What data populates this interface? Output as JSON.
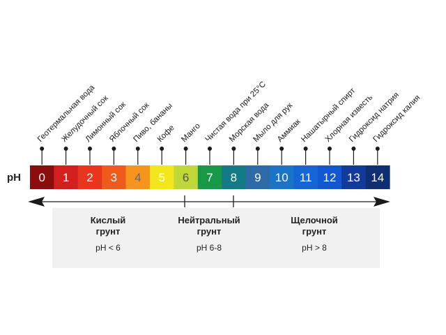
{
  "scale": {
    "axis_label": "pH",
    "cells": [
      {
        "value": "0",
        "color": "#8b0d0d",
        "text_color": "#ffffff"
      },
      {
        "value": "1",
        "color": "#d41f1f",
        "text_color": "#ffffff"
      },
      {
        "value": "2",
        "color": "#e8361e",
        "text_color": "#ffffff"
      },
      {
        "value": "3",
        "color": "#f05a1a",
        "text_color": "#ffffff"
      },
      {
        "value": "4",
        "color": "#f7941e",
        "text_color": "#666666"
      },
      {
        "value": "5",
        "color": "#f4e61c",
        "text_color": "#ffffff"
      },
      {
        "value": "6",
        "color": "#bfd838",
        "text_color": "#555555"
      },
      {
        "value": "7",
        "color": "#179a48",
        "text_color": "#ffffff"
      },
      {
        "value": "8",
        "color": "#137b85",
        "text_color": "#ffffff"
      },
      {
        "value": "9",
        "color": "#2d6aa6",
        "text_color": "#ffffff"
      },
      {
        "value": "10",
        "color": "#1a75c9",
        "text_color": "#ffffff"
      },
      {
        "value": "11",
        "color": "#1466d6",
        "text_color": "#ffffff"
      },
      {
        "value": "12",
        "color": "#1356d2",
        "text_color": "#ffffff"
      },
      {
        "value": "13",
        "color": "#113a9a",
        "text_color": "#ffffff"
      },
      {
        "value": "14",
        "color": "#0f2f72",
        "text_color": "#ffffff"
      }
    ]
  },
  "substances": [
    "Геотермальная вода",
    "Желудочный сок",
    "Лимонный сок",
    "Яблочный сок",
    "Пиво, бананы",
    "Кофе",
    "Манго",
    "Чистая вода при 25°C",
    "Морская вода",
    "Мыло для рук",
    "Аммиак",
    "Нашатырный спирт",
    "Хлорная известь",
    "Гидроксид натрия",
    "Гидроксид калия"
  ],
  "zones": [
    {
      "title_line1": "Кислый",
      "title_line2": "грунт",
      "range": "pH < 6"
    },
    {
      "title_line1": "Нейтральный",
      "title_line2": "грунт",
      "range": "pH 6-8"
    },
    {
      "title_line1": "Щелочной",
      "title_line2": "грунт",
      "range": "pH > 8"
    }
  ],
  "colors": {
    "zone_background": "#f1f1f1",
    "arrow": "#1a1a1a",
    "pin": "#1a1a1a"
  }
}
